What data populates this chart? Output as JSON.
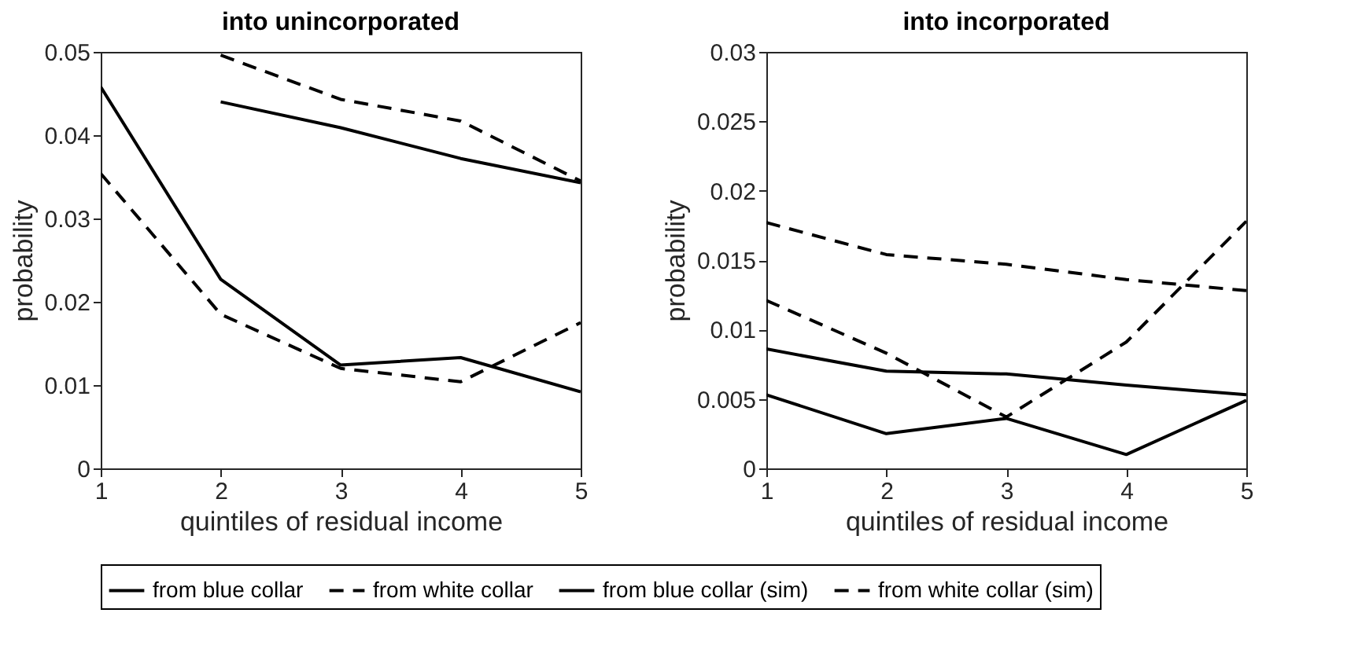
{
  "chart_data": [
    {
      "type": "line",
      "title": "into unincorporated",
      "xlabel": "quintiles of residual income",
      "ylabel": "probability",
      "x": [
        1,
        2,
        3,
        4,
        5
      ],
      "xlim": [
        1,
        5
      ],
      "xticks": [
        1,
        2,
        3,
        4,
        5
      ],
      "ylim": [
        0,
        0.05
      ],
      "yticks": [
        0,
        0.01,
        0.02,
        0.03,
        0.04,
        0.05
      ],
      "grid": false,
      "legend": "bottom",
      "series": [
        {
          "name": "from blue collar",
          "color": "#000000",
          "line_style": "solid",
          "values": [
            0.0458,
            0.0227,
            0.0124,
            0.0133,
            0.0092
          ]
        },
        {
          "name": "from white collar",
          "color": "#000000",
          "line_style": "dashed",
          "values": [
            0.0354,
            0.0185,
            0.012,
            0.0104,
            0.0175
          ]
        },
        {
          "name": "from blue collar (sim)",
          "color": "#000000",
          "line_style": "solid",
          "values": [
            null,
            0.044,
            0.0409,
            0.0372,
            0.0343
          ]
        },
        {
          "name": "from white collar (sim)",
          "color": "#000000",
          "line_style": "dashed",
          "values": [
            null,
            0.0496,
            0.0443,
            0.0417,
            0.0345
          ]
        }
      ]
    },
    {
      "type": "line",
      "title": "into incorporated",
      "xlabel": "quintiles of residual income",
      "ylabel": "probability",
      "x": [
        1,
        2,
        3,
        4,
        5
      ],
      "xlim": [
        1,
        5
      ],
      "xticks": [
        1,
        2,
        3,
        4,
        5
      ],
      "ylim": [
        0,
        0.03
      ],
      "yticks": [
        0,
        0.005,
        0.01,
        0.015,
        0.02,
        0.025,
        0.03
      ],
      "grid": false,
      "legend": "bottom",
      "series": [
        {
          "name": "from blue collar",
          "color": "#000000",
          "line_style": "solid",
          "values": [
            0.0053,
            0.0025,
            0.0036,
            0.001,
            0.0049
          ]
        },
        {
          "name": "from white collar",
          "color": "#000000",
          "line_style": "dashed",
          "values": [
            0.0121,
            0.0083,
            0.0037,
            0.0091,
            0.0178
          ]
        },
        {
          "name": "from blue collar (sim)",
          "color": "#000000",
          "line_style": "solid",
          "values": [
            0.0086,
            0.007,
            0.0068,
            0.006,
            0.0053
          ]
        },
        {
          "name": "from white collar (sim)",
          "color": "#000000",
          "line_style": "dashed",
          "values": [
            0.0177,
            0.0154,
            0.0147,
            0.0136,
            0.0128
          ]
        }
      ]
    }
  ]
}
